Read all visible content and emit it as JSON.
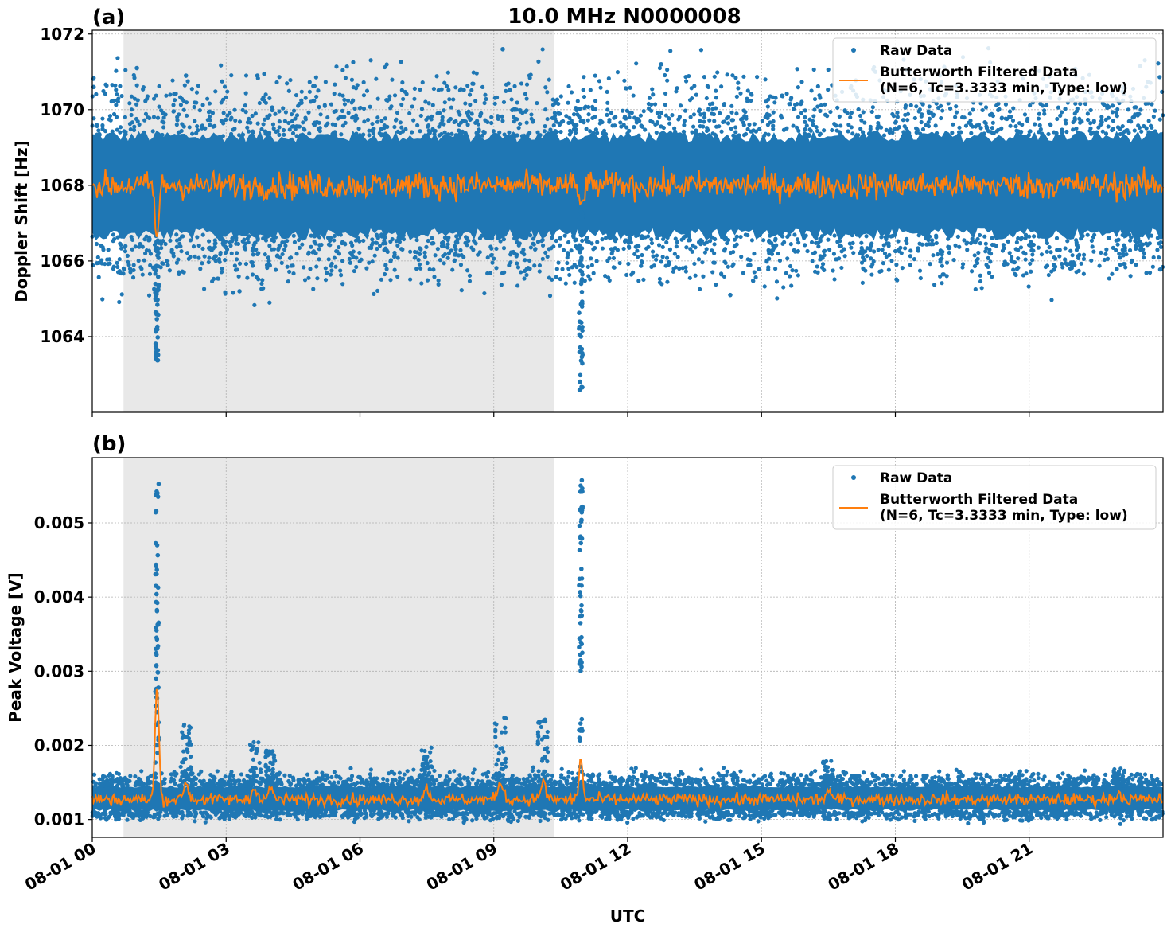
{
  "chart_data": {
    "title": "10.0 MHz N0000008",
    "type": "scatter",
    "xlabel": "UTC",
    "x_ticks": [
      "08-01 00",
      "08-01 03",
      "08-01 06",
      "08-01 09",
      "08-01 12",
      "08-01 15",
      "08-01 18",
      "08-01 21"
    ],
    "x_range_hours": [
      0,
      24
    ],
    "shaded_interval_hours": [
      0.7,
      10.35
    ],
    "colors": {
      "raw": "#1f77b4",
      "filtered": "#ff7f0e",
      "shade": "#e8e8e8",
      "grid": "#b0b0b0"
    },
    "grid": true,
    "legend": {
      "placement": "top-right",
      "raw_label": "Raw Data",
      "filtered_label_line1": "Butterworth Filtered Data",
      "filtered_label_line2": "(N=6, Tc=3.3333 min, Type: low)"
    },
    "panels": [
      {
        "label": "(a)",
        "ylabel": "Doppler Shift [Hz]",
        "ylim": [
          1062.0,
          1072.1
        ],
        "yticks": [
          1064,
          1066,
          1068,
          1070,
          1072
        ],
        "raw_band": {
          "center": 1068.0,
          "core_low": 1066.7,
          "core_high": 1069.3,
          "outer_low": 1065.6,
          "outer_high": 1070.6
        },
        "filtered_baseline": 1068.0,
        "events": [
          {
            "hour": 1.45,
            "raw_min": 1063.3,
            "filtered_min": 1066.6
          },
          {
            "hour": 10.95,
            "raw_min": 1062.5,
            "filtered_min": 1067.4
          }
        ],
        "outliers": [
          {
            "hour": 0.03,
            "value": 1070.6
          },
          {
            "hour": 1.0,
            "value": 1071.1
          },
          {
            "hour": 2.1,
            "value": 1070.9
          },
          {
            "hour": 3.7,
            "value": 1070.9
          },
          {
            "hour": 9.2,
            "value": 1071.6
          },
          {
            "hour": 9.8,
            "value": 1070.9
          },
          {
            "hour": 12.75,
            "value": 1071.2
          },
          {
            "hour": 14.3,
            "value": 1065.1
          },
          {
            "hour": 3.3,
            "value": 1065.2
          }
        ]
      },
      {
        "label": "(b)",
        "ylabel": "Peak Voltage [V]",
        "ylim": [
          0.00076,
          0.00588
        ],
        "yticks": [
          "0.001",
          "0.002",
          "0.003",
          "0.004",
          "0.005"
        ],
        "ytick_values": [
          0.001,
          0.002,
          0.003,
          0.004,
          0.005
        ],
        "raw_band": {
          "center": 0.00128,
          "core_low": 0.00112,
          "core_high": 0.00145,
          "outer_low": 0.00102,
          "outer_high": 0.0016
        },
        "filtered_baseline": 0.00127,
        "events": [
          {
            "hour": 1.45,
            "raw_max": 0.00553,
            "filtered_max": 0.00282
          },
          {
            "hour": 10.95,
            "raw_max": 0.00565,
            "filtered_max": 0.0018
          }
        ],
        "bumps": [
          {
            "hour": 2.1,
            "raw_max": 0.00228
          },
          {
            "hour": 3.65,
            "raw_max": 0.00205
          },
          {
            "hour": 4.0,
            "raw_max": 0.00193
          },
          {
            "hour": 7.5,
            "raw_max": 0.002
          },
          {
            "hour": 9.15,
            "raw_max": 0.00238
          },
          {
            "hour": 10.1,
            "raw_max": 0.00235
          },
          {
            "hour": 16.5,
            "raw_max": 0.0018
          },
          {
            "hour": 23.0,
            "raw_max": 0.00168
          }
        ]
      }
    ]
  }
}
